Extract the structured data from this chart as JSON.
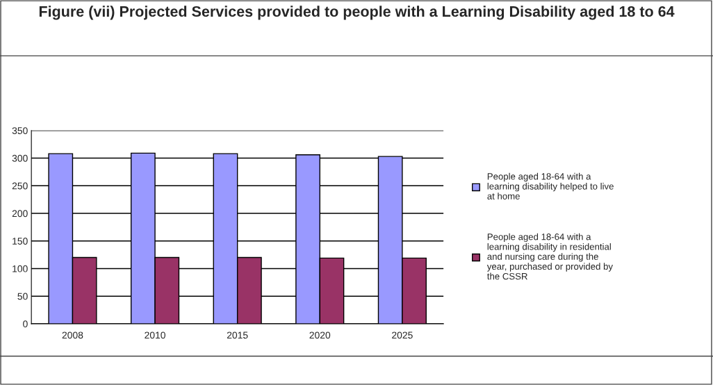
{
  "chart_data": {
    "type": "bar",
    "title": "Figure (vii) Projected Services provided to people with a Learning Disability aged 18 to 64",
    "categories": [
      "2008",
      "2010",
      "2015",
      "2020",
      "2025"
    ],
    "series": [
      {
        "name": "People aged 18-64 with a\nlearning disability helped to live\nat home",
        "color": "#9999ff",
        "values": [
          308,
          309,
          308,
          306,
          303
        ]
      },
      {
        "name": "People aged 18-64 with a\nlearning disability in residential\nand nursing care during the\nyear, purchased or provided by\nthe CSSR",
        "color": "#993366",
        "values": [
          120,
          120,
          120,
          119,
          119
        ]
      }
    ],
    "ylim": [
      0,
      350
    ],
    "yticks": [
      0,
      50,
      100,
      150,
      200,
      250,
      300,
      350
    ],
    "grid": "y",
    "legend": "right"
  }
}
